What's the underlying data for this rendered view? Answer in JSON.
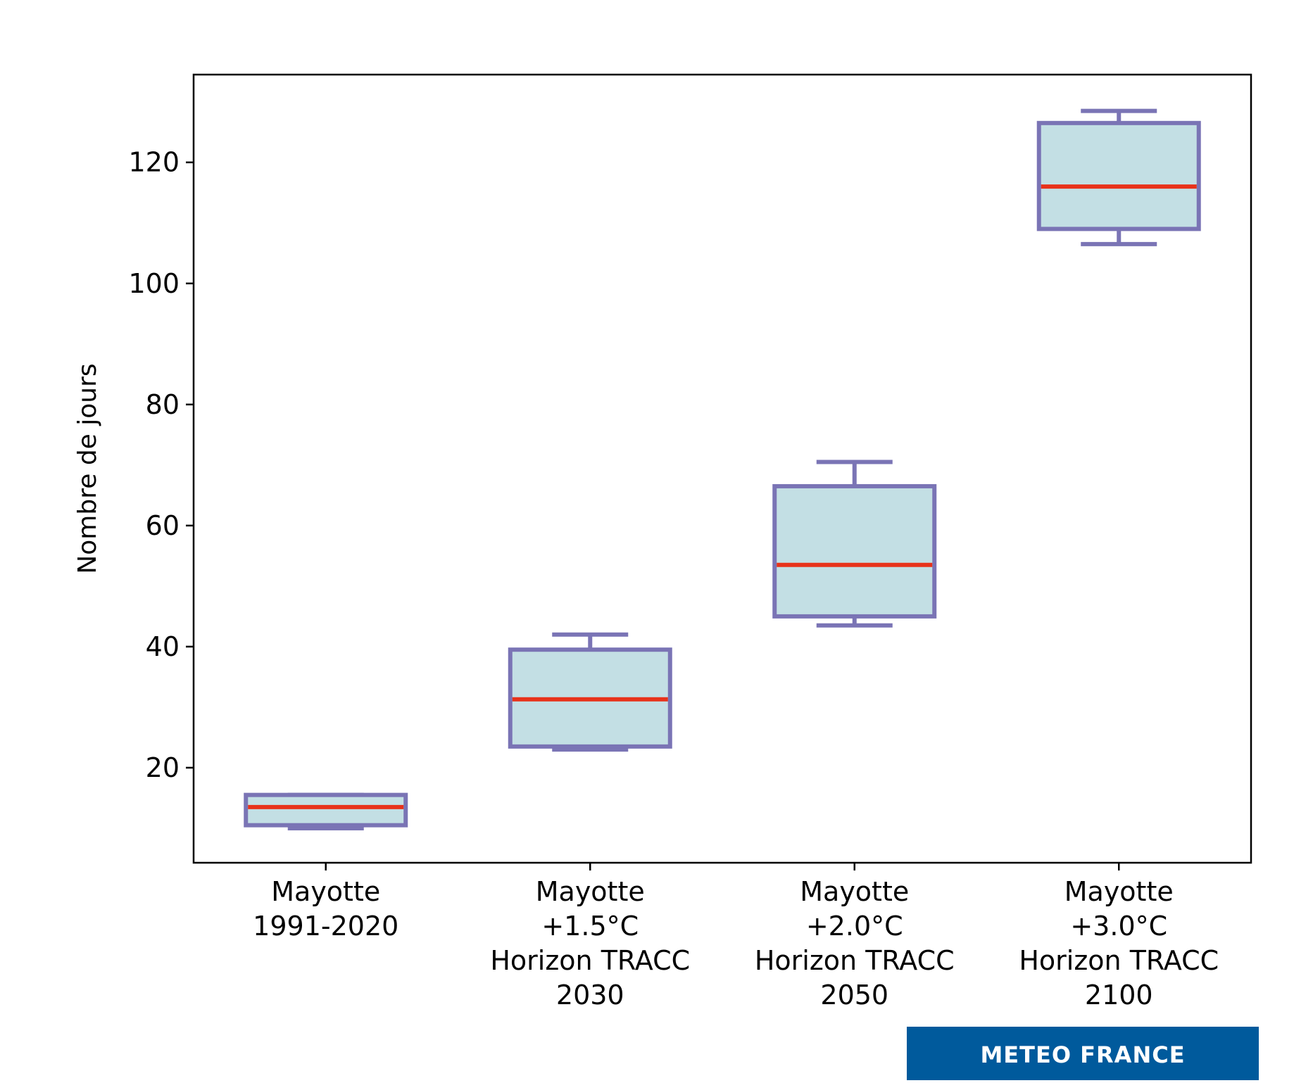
{
  "chart_data": {
    "type": "boxplot",
    "title": "",
    "xlabel": "",
    "ylabel": "Nombre de jours",
    "ylim": [
      4.3,
      134.5
    ],
    "yticks": [
      20,
      40,
      60,
      80,
      100,
      120
    ],
    "categories": [
      [
        "Mayotte",
        "1991-2020"
      ],
      [
        "Mayotte",
        "+1.5°C",
        "Horizon TRACC",
        "2030"
      ],
      [
        "Mayotte",
        "+2.0°C",
        "Horizon TRACC",
        "2050"
      ],
      [
        "Mayotte",
        "+3.0°C",
        "Horizon TRACC",
        "2100"
      ]
    ],
    "boxes": [
      {
        "whisker_low": 10.0,
        "q1": 10.5,
        "median": 13.5,
        "q3": 15.5,
        "whisker_high": 15.5
      },
      {
        "whisker_low": 23.0,
        "q1": 23.5,
        "median": 31.3,
        "q3": 39.5,
        "whisker_high": 42.0
      },
      {
        "whisker_low": 43.5,
        "q1": 45.0,
        "median": 53.5,
        "q3": 66.5,
        "whisker_high": 70.5
      },
      {
        "whisker_low": 106.5,
        "q1": 109.0,
        "median": 116.0,
        "q3": 126.5,
        "whisker_high": 128.5
      }
    ],
    "colors": {
      "box_fill": "#c3dfe4",
      "box_edge": "#7a74b5",
      "median": "#e8321a",
      "axis": "#000000"
    }
  },
  "credit": {
    "text": "METEO FRANCE",
    "background": "#005a9c",
    "color": "#ffffff"
  }
}
